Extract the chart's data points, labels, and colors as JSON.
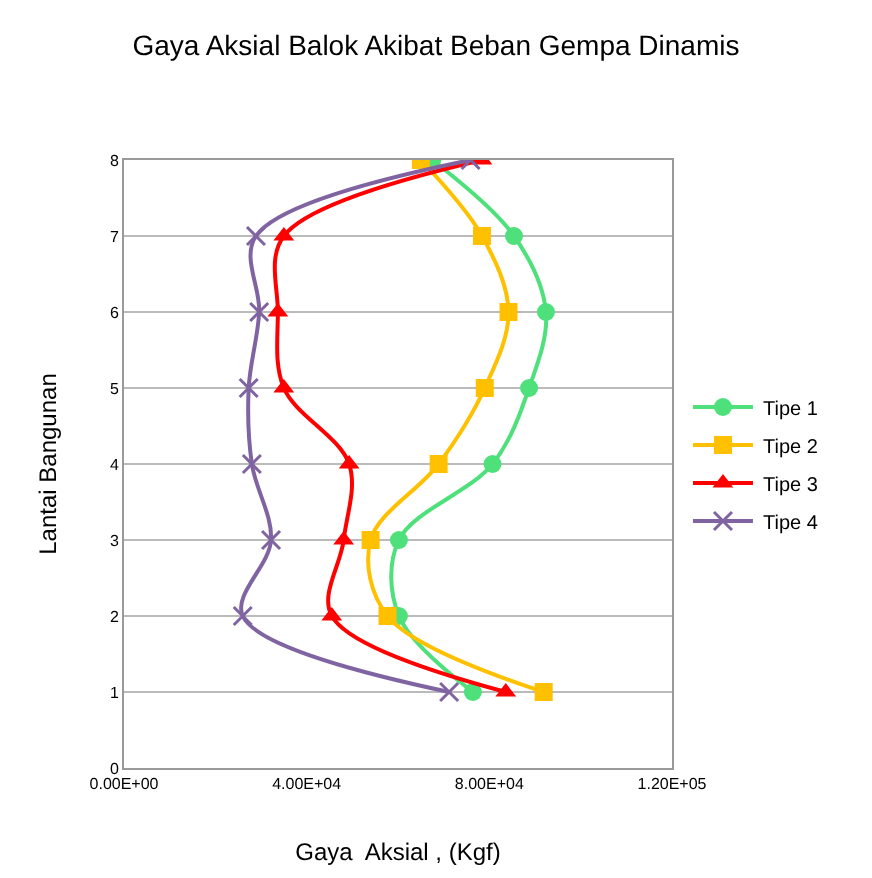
{
  "chart_data": {
    "type": "line",
    "title": "Gaya Aksial Balok Akibat Beban Gempa Dinamis",
    "xlabel": "Gaya  Aksial , (Kgf)",
    "ylabel": "Lantai Bangunan",
    "xlim": [
      0,
      120000
    ],
    "xticks": [
      {
        "value": 0,
        "label": "0.00E+00"
      },
      {
        "value": 40000,
        "label": "4.00E+04"
      },
      {
        "value": 80000,
        "label": "8.00E+04"
      },
      {
        "value": 120000,
        "label": "1.20E+05"
      }
    ],
    "ylim": [
      0,
      8
    ],
    "yticks": [
      0,
      1,
      2,
      3,
      4,
      5,
      6,
      7,
      8
    ],
    "grid": "y",
    "legend": "right",
    "series": [
      {
        "name": "Tipe 1",
        "color": "#4ee07a",
        "marker": "circle",
        "x": [
          76400,
          60200,
          60200,
          80700,
          88700,
          92400,
          85400,
          67500
        ],
        "values": [
          1,
          2,
          3,
          4,
          5,
          6,
          7,
          8
        ]
      },
      {
        "name": "Tipe 2",
        "color": "#ffc000",
        "marker": "square",
        "x": [
          91900,
          57700,
          54000,
          68900,
          79000,
          84200,
          78400,
          65000
        ],
        "values": [
          1,
          2,
          3,
          4,
          5,
          6,
          7,
          8
        ]
      },
      {
        "name": "Tipe 3",
        "color": "#ff0000",
        "marker": "triangle",
        "x": [
          83600,
          45500,
          48100,
          49300,
          35000,
          33700,
          35000,
          78400
        ],
        "values": [
          1,
          2,
          3,
          4,
          5,
          6,
          7,
          8
        ]
      },
      {
        "name": "Tipe 4",
        "color": "#8064a2",
        "marker": "cross",
        "x": [
          71200,
          26000,
          32200,
          28000,
          27300,
          29600,
          28900,
          75900
        ],
        "values": [
          1,
          2,
          3,
          4,
          5,
          6,
          7,
          8
        ]
      }
    ]
  }
}
